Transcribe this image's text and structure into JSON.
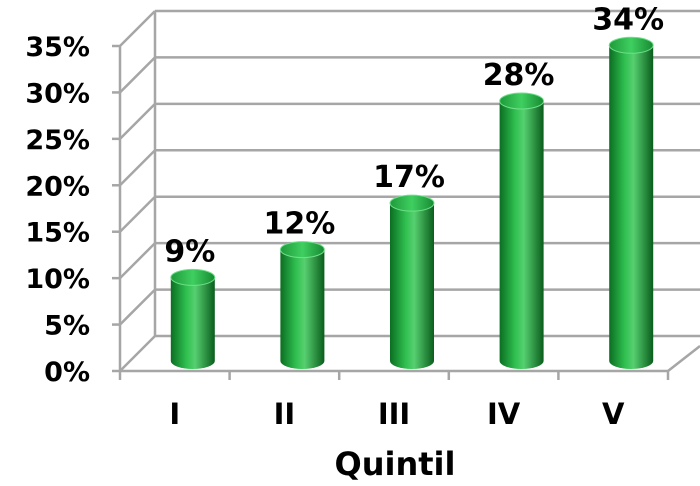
{
  "chart_data": {
    "type": "bar",
    "style": "3d-cylinder",
    "title": "",
    "xlabel": "Quintil",
    "ylabel": "",
    "categories": [
      "I",
      "II",
      "III",
      "IV",
      "V"
    ],
    "values": [
      9,
      12,
      17,
      28,
      34
    ],
    "data_labels": [
      "9%",
      "12%",
      "17%",
      "28%",
      "34%"
    ],
    "y_ticks": [
      0,
      5,
      10,
      15,
      20,
      25,
      30,
      35
    ],
    "y_tick_labels": [
      "0%",
      "5%",
      "10%",
      "15%",
      "20%",
      "25%",
      "30%",
      "35%"
    ],
    "ylim": [
      0,
      35
    ],
    "grid": true,
    "legend": "none",
    "colors": {
      "bar": "#1aa33a",
      "bar_dark": "#0b6e22",
      "bar_light": "#62d47a",
      "grid": "#a6a6a6",
      "text": "#000000"
    }
  }
}
